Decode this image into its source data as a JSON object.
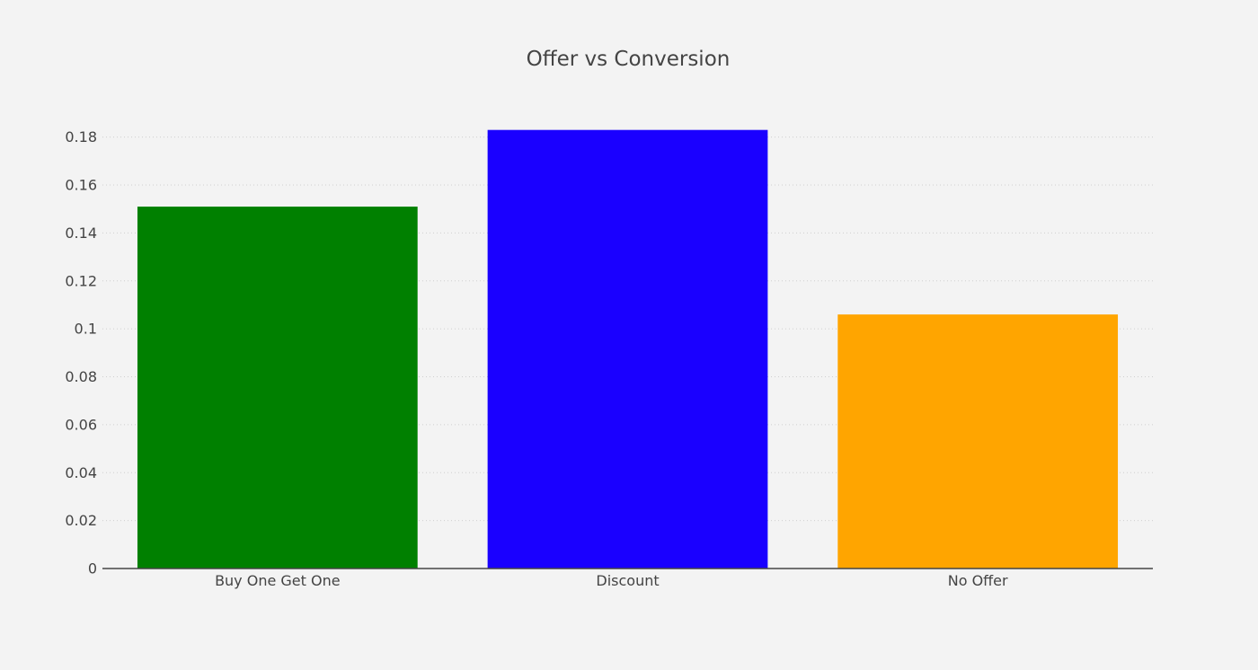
{
  "chart_data": {
    "type": "bar",
    "title": "Offer vs Conversion",
    "xlabel": "",
    "ylabel": "",
    "categories": [
      "Buy One Get One",
      "Discount",
      "No Offer"
    ],
    "values": [
      0.151,
      0.183,
      0.106
    ],
    "colors": [
      "#008000",
      "#1a00ff",
      "#ffa500"
    ],
    "ylim": [
      0,
      0.19
    ],
    "yticks": [
      0,
      0.02,
      0.04,
      0.06,
      0.08,
      0.1,
      0.12,
      0.14,
      0.16,
      0.18
    ],
    "ytick_labels": [
      "0",
      "0.02",
      "0.04",
      "0.06",
      "0.08",
      "0.1",
      "0.12",
      "0.14",
      "0.16",
      "0.18"
    ],
    "grid": true,
    "legend": "none",
    "background": "#f3f3f3"
  }
}
